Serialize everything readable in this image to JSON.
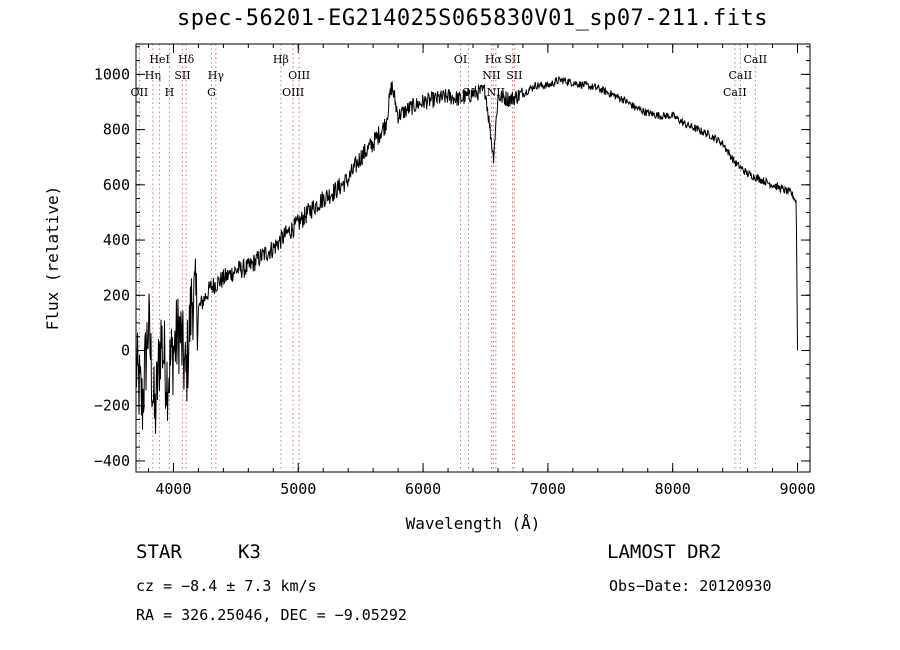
{
  "title": "spec-56201-EG214025S065830V01_sp07-211.fits",
  "chart_data": {
    "type": "line",
    "title": "spec-56201-EG214025S065830V01_sp07-211.fits",
    "xlabel": "Wavelength (Å)",
    "ylabel": "Flux (relative)",
    "xlim": [
      3700,
      9100
    ],
    "ylim": [
      -440,
      1110
    ],
    "x_ticks": [
      4000,
      5000,
      6000,
      7000,
      8000,
      9000
    ],
    "y_ticks": [
      -400,
      -200,
      0,
      200,
      400,
      600,
      800,
      1000
    ],
    "series": [
      {
        "x": [
          3700,
          3750,
          3800,
          3850,
          3900,
          3950,
          4000,
          4050,
          4100,
          4150,
          4200,
          4300,
          4400,
          4500,
          4600,
          4700,
          4800,
          4900,
          5000,
          5100,
          5200,
          5300,
          5400,
          5500,
          5600,
          5700,
          5750,
          5800,
          5900,
          6000,
          6100,
          6200,
          6300,
          6400,
          6500,
          6563,
          6600,
          6700,
          6800,
          6900,
          7000,
          7100,
          7200,
          7300,
          7400,
          7500,
          7600,
          7700,
          7800,
          7900,
          8000,
          8100,
          8200,
          8300,
          8400,
          8500,
          8600,
          8700,
          8800,
          8900,
          8950,
          8990,
          9000
        ],
        "y": [
          -60,
          -200,
          100,
          -250,
          50,
          -100,
          0,
          80,
          -100,
          200,
          150,
          230,
          260,
          290,
          300,
          340,
          370,
          420,
          460,
          510,
          550,
          580,
          620,
          700,
          750,
          820,
          960,
          850,
          880,
          900,
          910,
          920,
          910,
          930,
          940,
          700,
          920,
          910,
          930,
          960,
          960,
          980,
          970,
          960,
          950,
          930,
          910,
          880,
          860,
          850,
          850,
          820,
          800,
          780,
          750,
          680,
          640,
          620,
          600,
          580,
          570,
          540,
          0
        ]
      }
    ],
    "lines": [
      {
        "label": "OII",
        "x": 3727,
        "row": 3
      },
      {
        "label": "Hη",
        "x": 3835,
        "row": 2
      },
      {
        "label": "HeI",
        "x": 3889,
        "row": 1
      },
      {
        "label": "H",
        "x": 3968,
        "row": 3
      },
      {
        "label": "SII",
        "x": 4072,
        "row": 2
      },
      {
        "label": "Hδ",
        "x": 4102,
        "row": 1
      },
      {
        "label": "Hγ",
        "x": 4340,
        "row": 2
      },
      {
        "label": "G",
        "x": 4305,
        "row": 3
      },
      {
        "label": "Hβ",
        "x": 4861,
        "row": 1
      },
      {
        "label": "OIII",
        "x": 4959,
        "row": 3
      },
      {
        "label": "OIII",
        "x": 5007,
        "row": 2
      },
      {
        "label": "OI",
        "x": 6300,
        "row": 1
      },
      {
        "label": "OI",
        "x": 6364,
        "row": 3
      },
      {
        "label": "Hα",
        "x": 6563,
        "row": 1
      },
      {
        "label": "NII",
        "x": 6548,
        "row": 2
      },
      {
        "label": "NII",
        "x": 6583,
        "row": 3
      },
      {
        "label": "SII",
        "x": 6717,
        "row": 1
      },
      {
        "label": "SII",
        "x": 6731,
        "row": 2
      },
      {
        "label": "CaII",
        "x": 8498,
        "row": 3
      },
      {
        "label": "CaII",
        "x": 8542,
        "row": 2
      },
      {
        "label": "CaII",
        "x": 8662,
        "row": 1
      }
    ]
  },
  "info": {
    "class": "STAR",
    "subclass": "K3",
    "survey": "LAMOST DR2",
    "cz": "cz = −8.4 ± 7.3 km/s",
    "obsdate": "Obs−Date: 20120930",
    "radec": "RA = 326.25046, DEC =  −9.05292"
  }
}
